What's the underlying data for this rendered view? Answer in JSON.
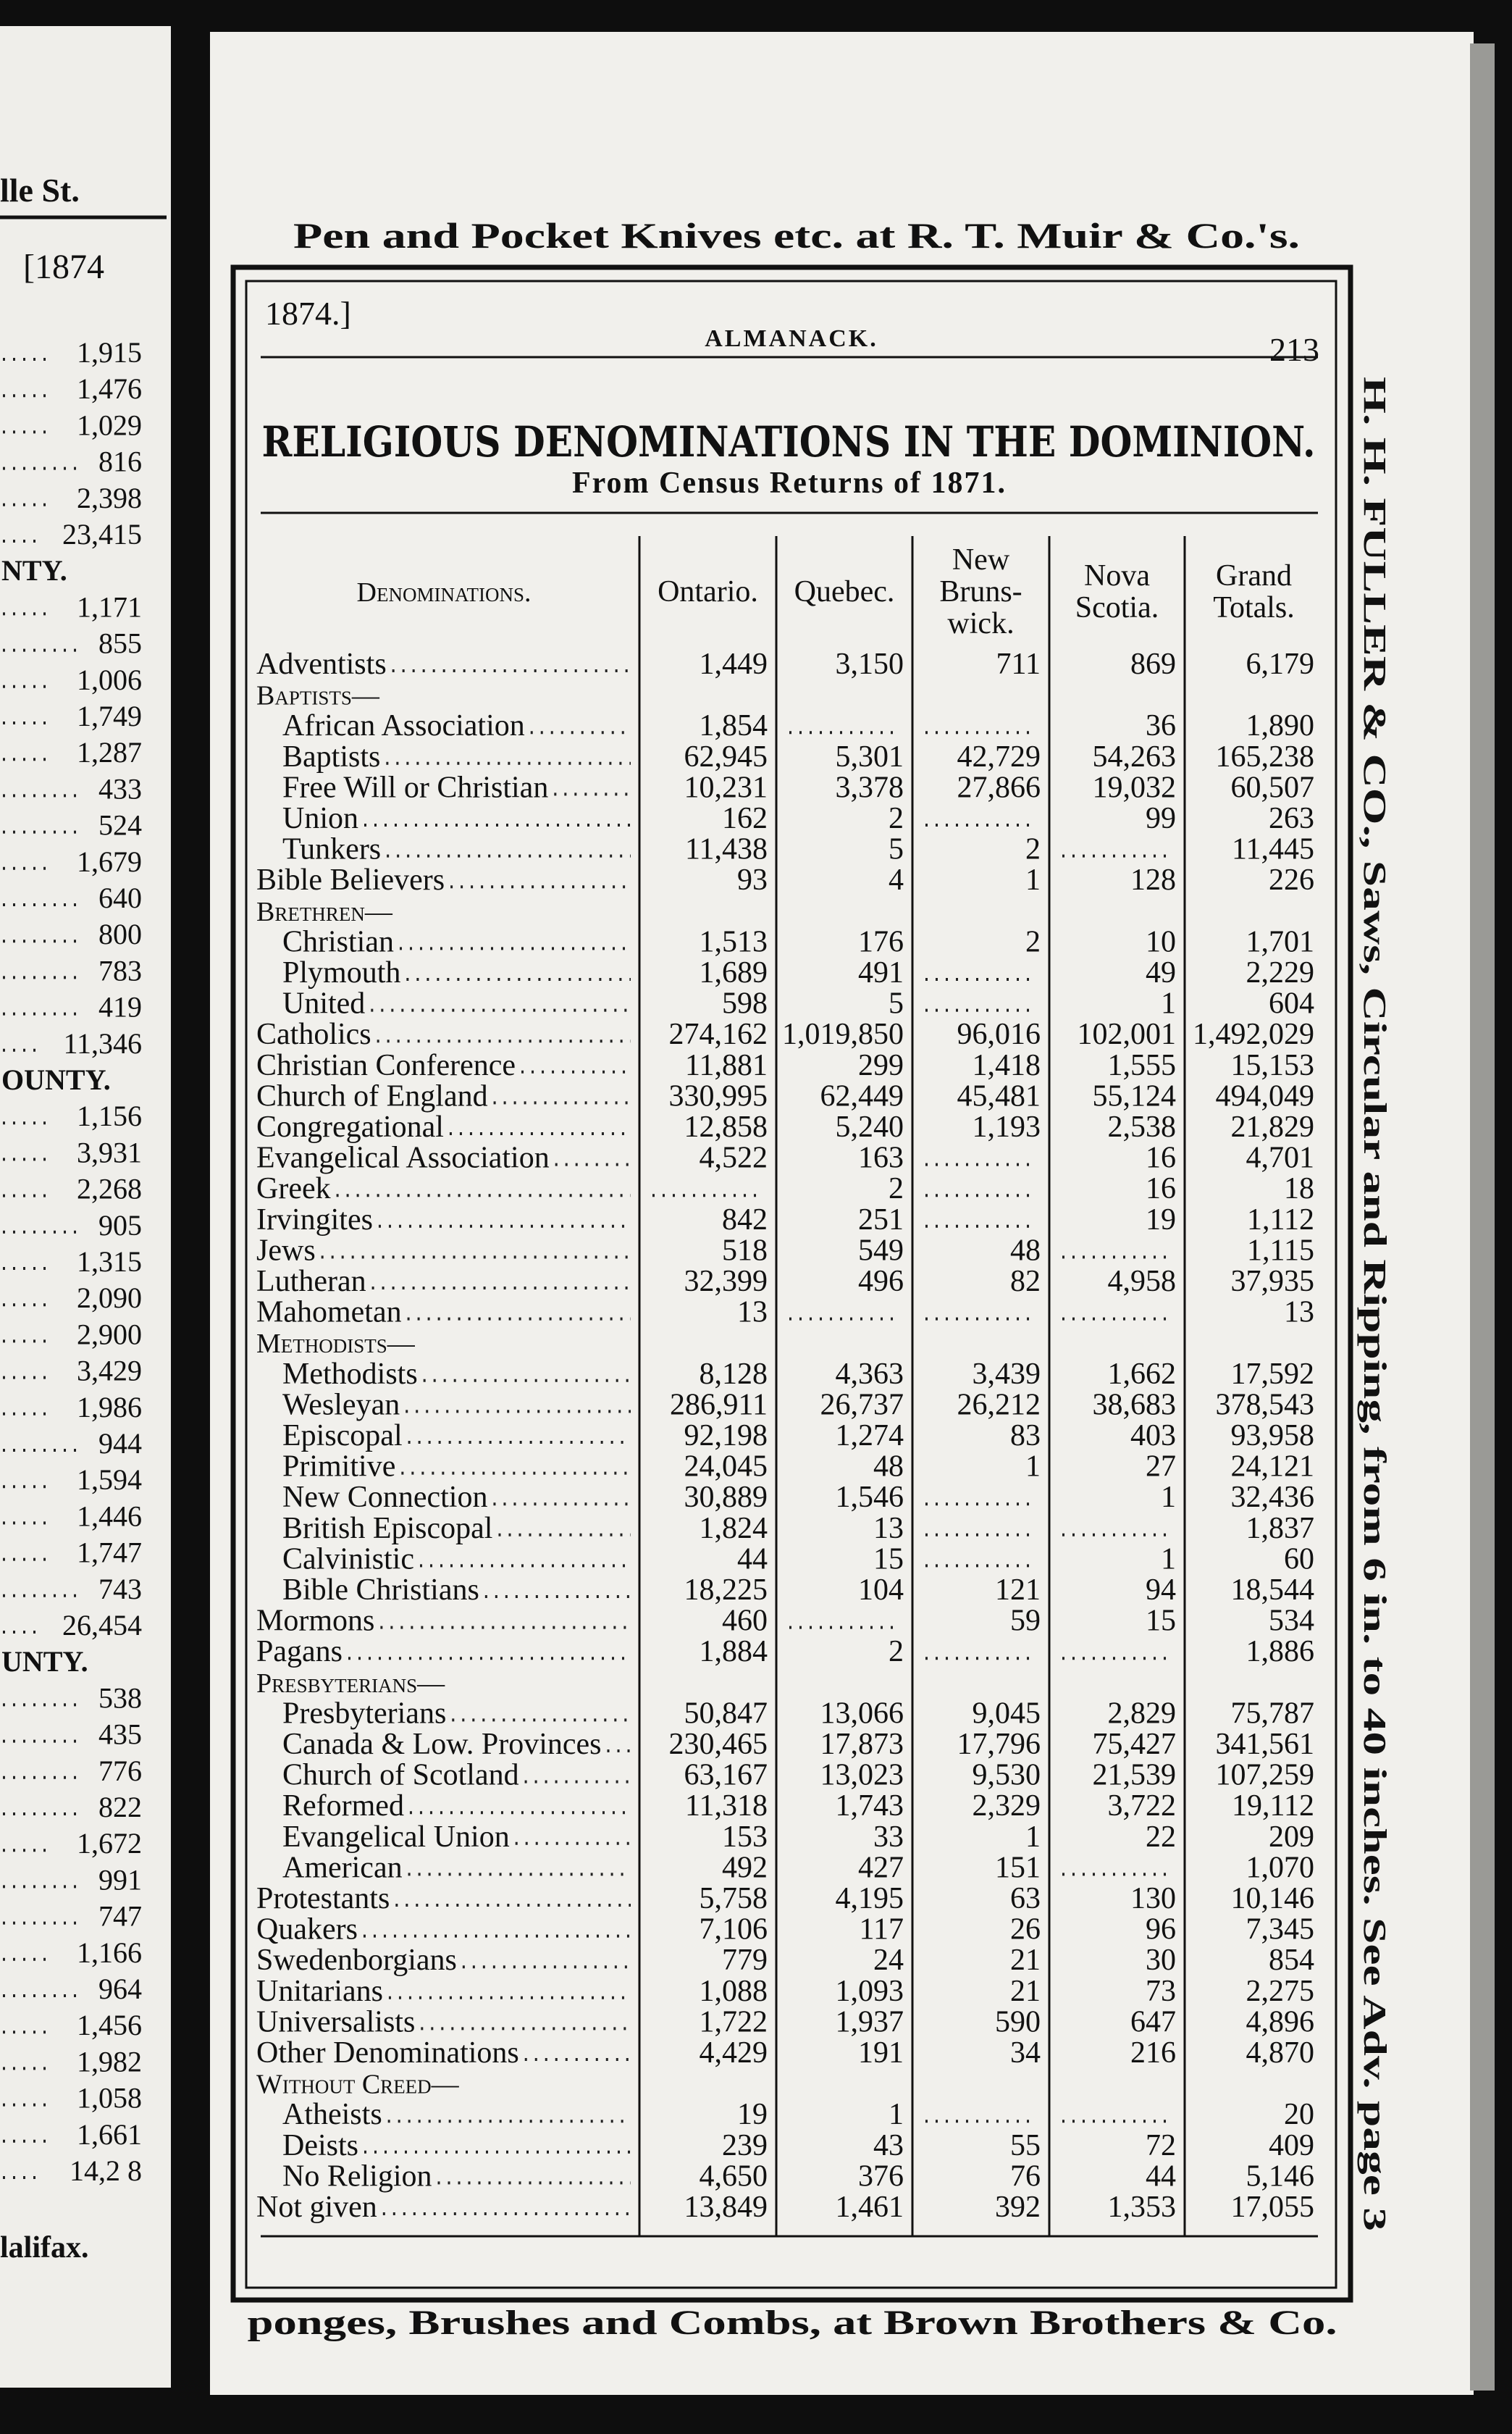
{
  "banner": "Pen and Pocket Knives etc. at R. T. Muir & Co.'s.",
  "running_head": {
    "year": "1874.]",
    "title": "ALMANACK.",
    "page_number": "213"
  },
  "title": "RELIGIOUS DENOMINATIONS IN THE DOMINION.",
  "subtitle": "From Census Returns of 1871.",
  "table": {
    "columns": [
      [
        "Denominations."
      ],
      [
        "Ontario."
      ],
      [
        "Quebec."
      ],
      [
        "New",
        "Bruns-",
        "wick."
      ],
      [
        "Nova",
        "Scotia."
      ],
      [
        "Grand",
        "Totals."
      ]
    ],
    "rows": [
      {
        "label": "Adventists",
        "values": [
          "1,449",
          "3,150",
          "711",
          "869",
          "6,179"
        ]
      },
      {
        "label": "Baptists—",
        "rows": [
          {
            "label": "African Association",
            "values": [
              "1,854",
              null,
              null,
              "36",
              "1,890"
            ]
          },
          {
            "label": "Baptists",
            "values": [
              "62,945",
              "5,301",
              "42,729",
              "54,263",
              "165,238"
            ]
          },
          {
            "label": "Free Will or Christian",
            "values": [
              "10,231",
              "3,378",
              "27,866",
              "19,032",
              "60,507"
            ]
          },
          {
            "label": "Union",
            "values": [
              "162",
              "2",
              null,
              "99",
              "263"
            ]
          },
          {
            "label": "Tunkers",
            "values": [
              "11,438",
              "5",
              "2",
              null,
              "11,445"
            ]
          }
        ]
      },
      {
        "label": "Bible Believers",
        "values": [
          "93",
          "4",
          "1",
          "128",
          "226"
        ]
      },
      {
        "label": "Brethren—",
        "rows": [
          {
            "label": "Christian",
            "values": [
              "1,513",
              "176",
              "2",
              "10",
              "1,701"
            ]
          },
          {
            "label": "Plymouth",
            "values": [
              "1,689",
              "491",
              null,
              "49",
              "2,229"
            ]
          },
          {
            "label": "United",
            "values": [
              "598",
              "5",
              null,
              "1",
              "604"
            ]
          }
        ]
      },
      {
        "label": "Catholics",
        "values": [
          "274,162",
          "1,019,850",
          "96,016",
          "102,001",
          "1,492,029"
        ]
      },
      {
        "label": "Christian Conference",
        "values": [
          "11,881",
          "299",
          "1,418",
          "1,555",
          "15,153"
        ]
      },
      {
        "label": "Church of England",
        "values": [
          "330,995",
          "62,449",
          "45,481",
          "55,124",
          "494,049"
        ]
      },
      {
        "label": "Congregational",
        "values": [
          "12,858",
          "5,240",
          "1,193",
          "2,538",
          "21,829"
        ]
      },
      {
        "label": "Evangelical Association",
        "values": [
          "4,522",
          "163",
          null,
          "16",
          "4,701"
        ]
      },
      {
        "label": "Greek",
        "values": [
          null,
          "2",
          null,
          "16",
          "18"
        ]
      },
      {
        "label": "Irvingites",
        "values": [
          "842",
          "251",
          null,
          "19",
          "1,112"
        ]
      },
      {
        "label": "Jews",
        "values": [
          "518",
          "549",
          "48",
          null,
          "1,115"
        ]
      },
      {
        "label": "Lutheran",
        "values": [
          "32,399",
          "496",
          "82",
          "4,958",
          "37,935"
        ]
      },
      {
        "label": "Mahometan",
        "values": [
          "13",
          null,
          null,
          null,
          "13"
        ]
      },
      {
        "label": "Methodists—",
        "rows": [
          {
            "label": "Methodists",
            "values": [
              "8,128",
              "4,363",
              "3,439",
              "1,662",
              "17,592"
            ]
          },
          {
            "label": "Wesleyan",
            "values": [
              "286,911",
              "26,737",
              "26,212",
              "38,683",
              "378,543"
            ]
          },
          {
            "label": "Episcopal",
            "values": [
              "92,198",
              "1,274",
              "83",
              "403",
              "93,958"
            ]
          },
          {
            "label": "Primitive",
            "values": [
              "24,045",
              "48",
              "1",
              "27",
              "24,121"
            ]
          },
          {
            "label": "New Connection",
            "values": [
              "30,889",
              "1,546",
              null,
              "1",
              "32,436"
            ]
          },
          {
            "label": "British Episcopal",
            "values": [
              "1,824",
              "13",
              null,
              null,
              "1,837"
            ]
          },
          {
            "label": "Calvinistic",
            "values": [
              "44",
              "15",
              null,
              "1",
              "60"
            ]
          },
          {
            "label": "Bible Christians",
            "values": [
              "18,225",
              "104",
              "121",
              "94",
              "18,544"
            ]
          }
        ]
      },
      {
        "label": "Mormons",
        "values": [
          "460",
          null,
          "59",
          "15",
          "534"
        ]
      },
      {
        "label": "Pagans",
        "values": [
          "1,884",
          "2",
          null,
          null,
          "1,886"
        ]
      },
      {
        "label": "Presbyterians—",
        "rows": [
          {
            "label": "Presbyterians",
            "values": [
              "50,847",
              "13,066",
              "9,045",
              "2,829",
              "75,787"
            ]
          },
          {
            "label": "Canada & Low. Provinces",
            "values": [
              "230,465",
              "17,873",
              "17,796",
              "75,427",
              "341,561"
            ]
          },
          {
            "label": "Church of Scotland",
            "values": [
              "63,167",
              "13,023",
              "9,530",
              "21,539",
              "107,259"
            ]
          },
          {
            "label": "Reformed",
            "values": [
              "11,318",
              "1,743",
              "2,329",
              "3,722",
              "19,112"
            ]
          },
          {
            "label": "Evangelical Union",
            "values": [
              "153",
              "33",
              "1",
              "22",
              "209"
            ]
          },
          {
            "label": "American",
            "values": [
              "492",
              "427",
              "151",
              null,
              "1,070"
            ]
          }
        ]
      },
      {
        "label": "Protestants",
        "values": [
          "5,758",
          "4,195",
          "63",
          "130",
          "10,146"
        ]
      },
      {
        "label": "Quakers",
        "values": [
          "7,106",
          "117",
          "26",
          "96",
          "7,345"
        ]
      },
      {
        "label": "Swedenborgians",
        "values": [
          "779",
          "24",
          "21",
          "30",
          "854"
        ]
      },
      {
        "label": "Unitarians",
        "values": [
          "1,088",
          "1,093",
          "21",
          "73",
          "2,275"
        ]
      },
      {
        "label": "Universalists",
        "values": [
          "1,722",
          "1,937",
          "590",
          "647",
          "4,896"
        ]
      },
      {
        "label": "Other Denominations",
        "values": [
          "4,429",
          "191",
          "34",
          "216",
          "4,870"
        ]
      },
      {
        "label": "Without Creed—",
        "rows": [
          {
            "label": "Atheists",
            "values": [
              "19",
              "1",
              null,
              null,
              "20"
            ]
          },
          {
            "label": "Deists",
            "values": [
              "239",
              "43",
              "55",
              "72",
              "409"
            ]
          },
          {
            "label": "No Religion",
            "values": [
              "4,650",
              "376",
              "76",
              "44",
              "5,146"
            ]
          }
        ]
      },
      {
        "label": "Not given",
        "values": [
          "13,849",
          "1,461",
          "392",
          "1,353",
          "17,055"
        ]
      }
    ]
  },
  "side_text": "H. H. FULLER & CO., Saws, Circular and Ripping, from 6 in. to 40 inches. See Adv. page 3",
  "footer": "ponges, Brushes and Combs, at Brown Brothers & Co.",
  "left_page": {
    "header": "lle St.",
    "year": "[1874",
    "lines": [
      "1,915",
      "1,476",
      "1,029",
      "816",
      "2,398",
      "23,415",
      "NTY.",
      "1,171",
      "855",
      "1,006",
      "1,749",
      "1,287",
      "433",
      "524",
      "1,679",
      "640",
      "800",
      "783",
      "419",
      "11,346",
      "OUNTY.",
      "1,156",
      "3,931",
      "2,268",
      "905",
      "1,315",
      "2,090",
      "2,900",
      "3,429",
      "1,986",
      "944",
      "1,594",
      "1,446",
      "1,747",
      "743",
      "26,454",
      "UNTY.",
      "538",
      "435",
      "776",
      "822",
      "1,672",
      "991",
      "747",
      "1,166",
      "964",
      "1,456",
      "1,982",
      "1,058",
      "1,661",
      "14,2 8"
    ],
    "footer": "lalifax."
  }
}
